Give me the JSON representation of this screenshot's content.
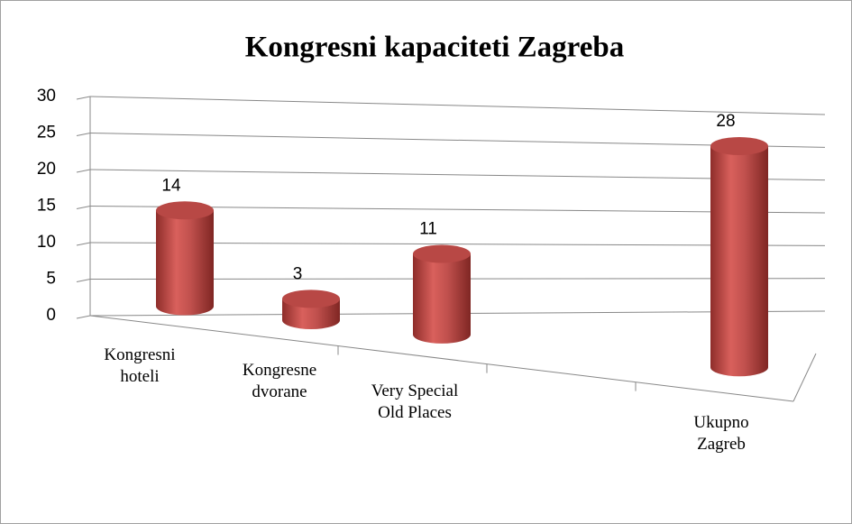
{
  "chart_data": {
    "type": "bar3d",
    "title": "Kongresni kapaciteti Zagreba",
    "categories": [
      "Kongresni hoteli",
      "Kongresne dvorane",
      "Very Special Old Places",
      null,
      "Ukupno Zagreb"
    ],
    "values": [
      14,
      3,
      11,
      null,
      28
    ],
    "color": "#c0504d",
    "ylim": [
      0,
      30
    ],
    "yticks": [
      0,
      5,
      10,
      15,
      20,
      25,
      30
    ],
    "grid": true
  }
}
